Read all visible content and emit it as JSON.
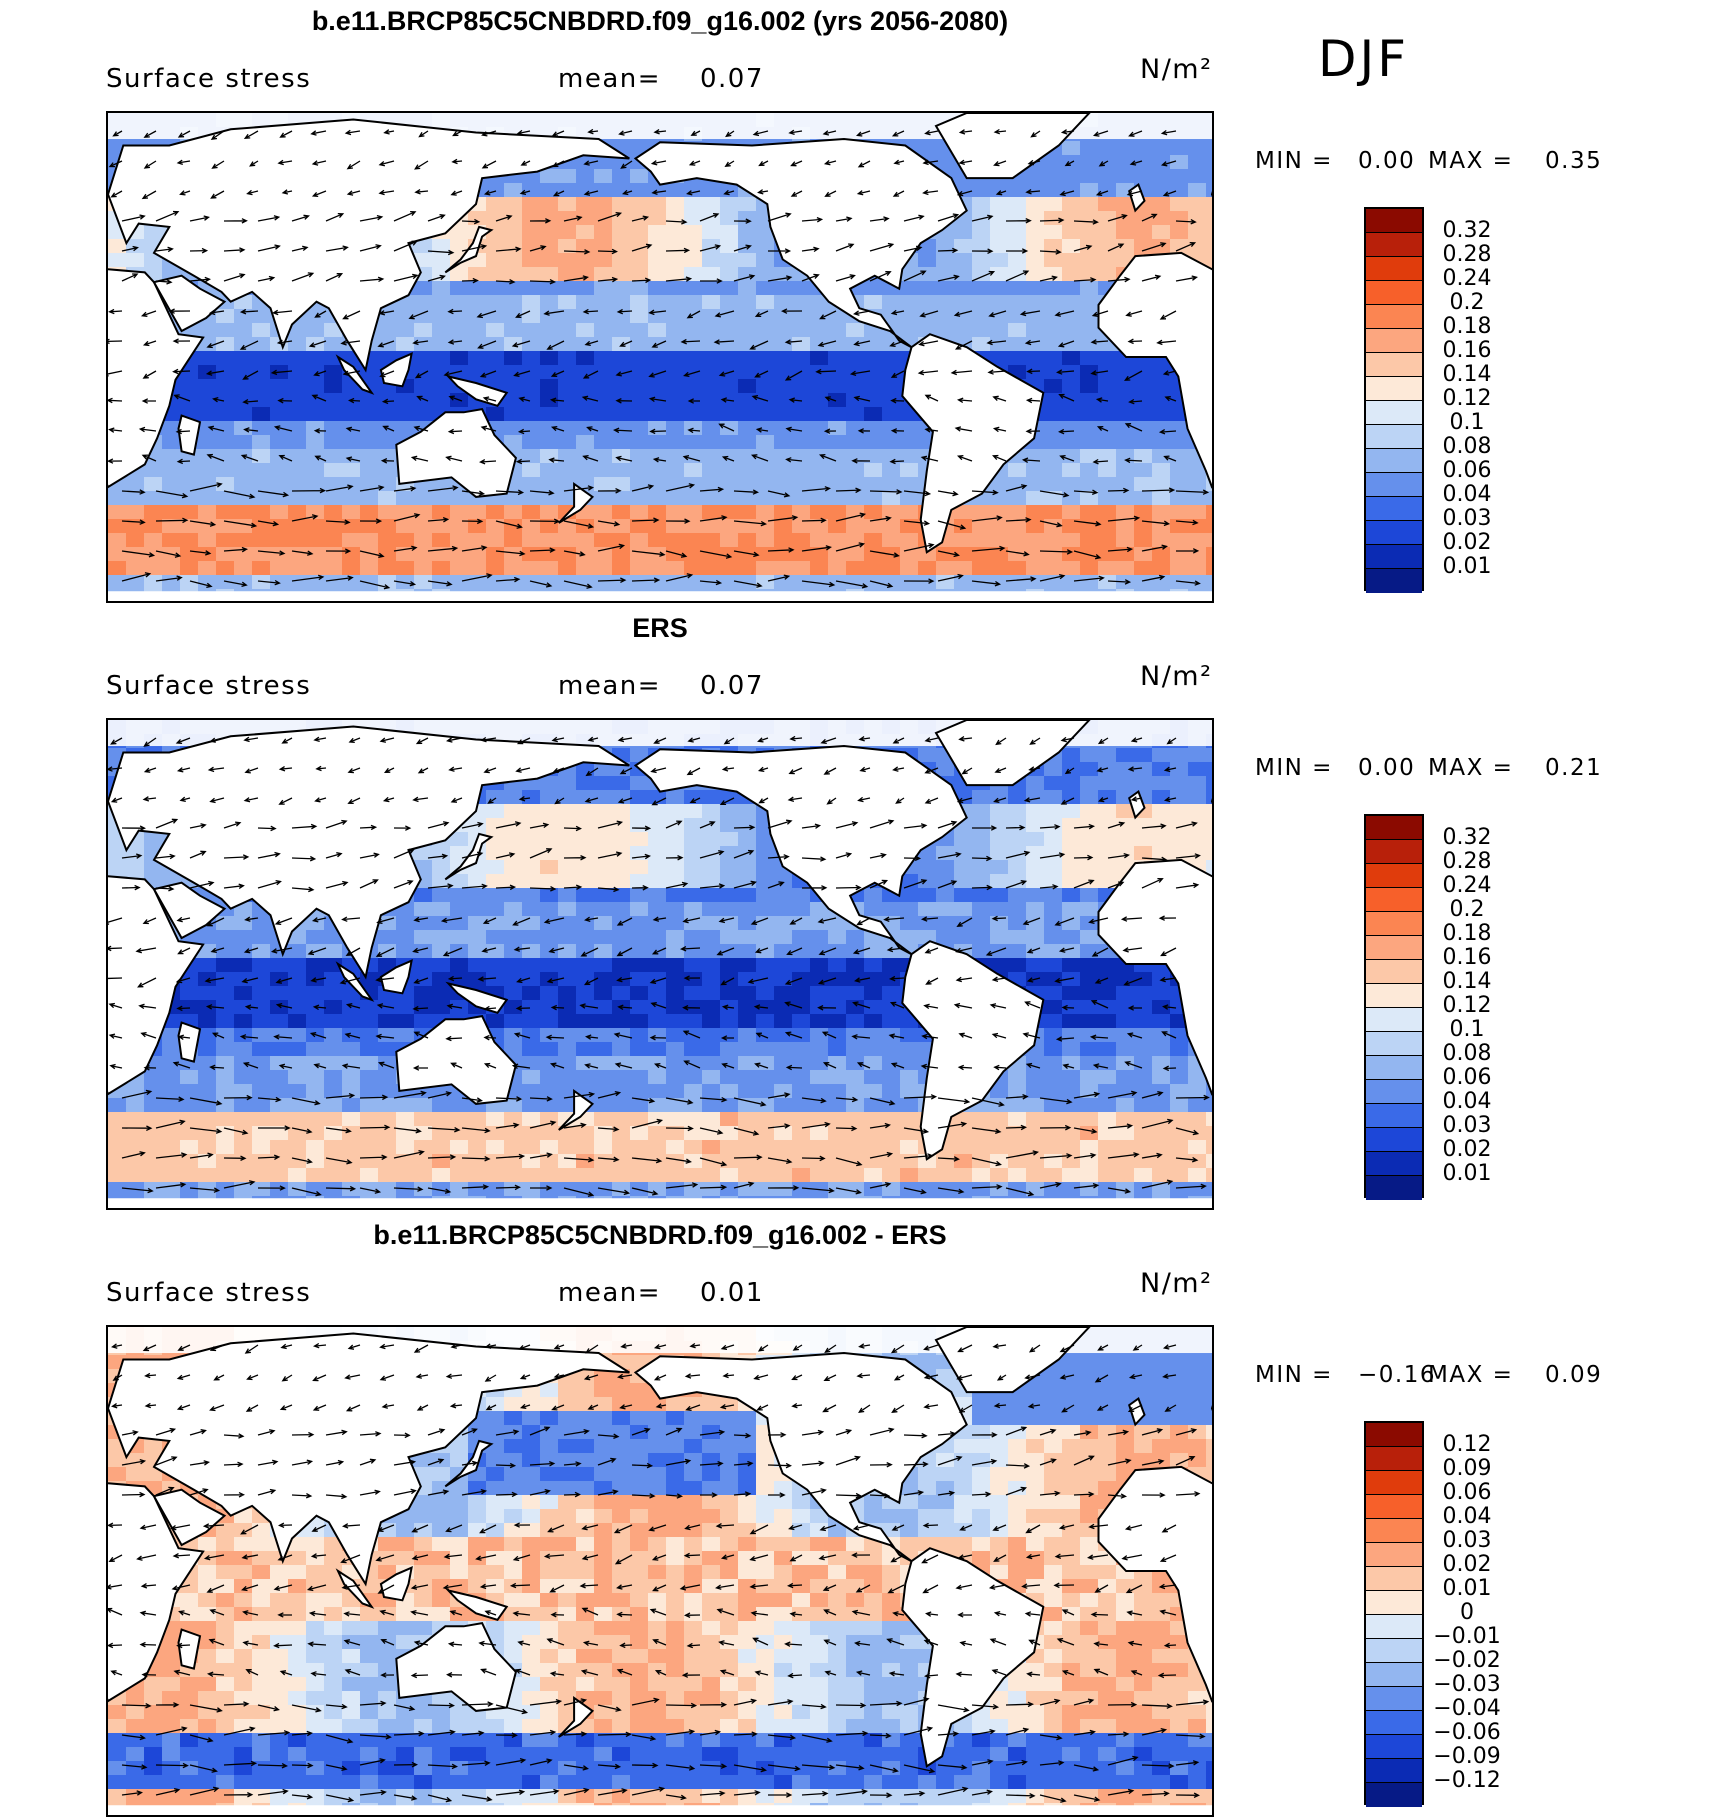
{
  "season": "DJF",
  "panels": [
    {
      "title": "b.e11.BRCP85C5CNBDRD.f09_g16.002 (yrs 2056-2080)",
      "variable": "Surface stress",
      "mean_label": "mean=",
      "mean_value": "0.07",
      "units": "N/m²",
      "min_label": "MIN =",
      "min_value": "0.00",
      "max_label": "MAX =",
      "max_value": "0.35",
      "colorbar_ticks": [
        "0.32",
        "0.28",
        "0.24",
        "0.2",
        "0.18",
        "0.16",
        "0.14",
        "0.12",
        "0.1",
        "0.08",
        "0.06",
        "0.04",
        "0.03",
        "0.02",
        "0.01"
      ],
      "colorbar_colors": [
        "#8b0a00",
        "#b8200a",
        "#e03c0c",
        "#f7602a",
        "#fb8552",
        "#fca67f",
        "#fcc8a8",
        "#fde9d8",
        "#dce9f8",
        "#bcd4f5",
        "#93b6f0",
        "#6590ec",
        "#3a6ae8",
        "#1d47d8",
        "#0b2bb4",
        "#061a86"
      ],
      "field": "model"
    },
    {
      "title": "ERS",
      "variable": "Surface stress",
      "mean_label": "mean=",
      "mean_value": "0.07",
      "units": "N/m²",
      "min_label": "MIN =",
      "min_value": "0.00",
      "max_label": "MAX =",
      "max_value": "0.21",
      "colorbar_ticks": [
        "0.32",
        "0.28",
        "0.24",
        "0.2",
        "0.18",
        "0.16",
        "0.14",
        "0.12",
        "0.1",
        "0.08",
        "0.06",
        "0.04",
        "0.03",
        "0.02",
        "0.01"
      ],
      "colorbar_colors": [
        "#8b0a00",
        "#b8200a",
        "#e03c0c",
        "#f7602a",
        "#fb8552",
        "#fca67f",
        "#fcc8a8",
        "#fde9d8",
        "#dce9f8",
        "#bcd4f5",
        "#93b6f0",
        "#6590ec",
        "#3a6ae8",
        "#1d47d8",
        "#0b2bb4",
        "#061a86"
      ],
      "field": "obs"
    },
    {
      "title": "b.e11.BRCP85C5CNBDRD.f09_g16.002 - ERS",
      "variable": "Surface stress",
      "mean_label": "mean=",
      "mean_value": "0.01",
      "units": "N/m²",
      "min_label": "MIN =",
      "min_value": "−0.16",
      "max_label": "MAX =",
      "max_value": "0.09",
      "colorbar_ticks": [
        "0.12",
        "0.09",
        "0.06",
        "0.04",
        "0.03",
        "0.02",
        "0.01",
        "0",
        "−0.01",
        "−0.02",
        "−0.03",
        "−0.04",
        "−0.06",
        "−0.09",
        "−0.12"
      ],
      "colorbar_colors": [
        "#8b0a00",
        "#b8200a",
        "#e03c0c",
        "#f7602a",
        "#fb8552",
        "#fca67f",
        "#fcc8a8",
        "#fde9d8",
        "#dce9f8",
        "#bcd4f5",
        "#93b6f0",
        "#6590ec",
        "#3a6ae8",
        "#1d47d8",
        "#0b2bb4",
        "#061a86"
      ],
      "field": "diff"
    }
  ]
}
